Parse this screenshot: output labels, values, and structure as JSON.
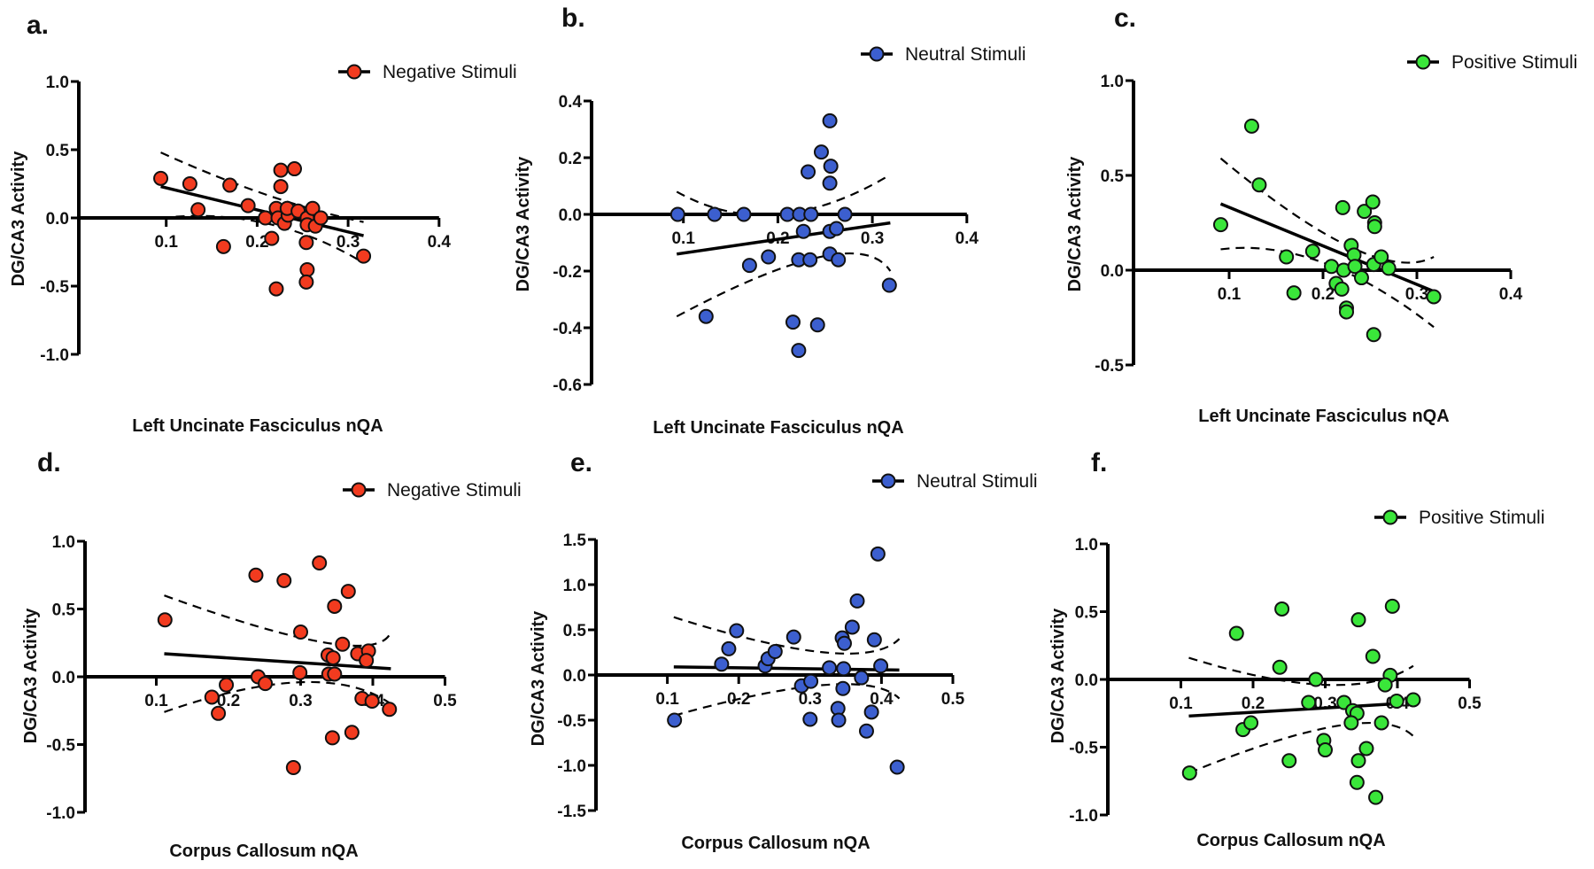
{
  "chart_data": [
    {
      "type": "scatter",
      "panel_label": "a.",
      "legend": "Negative Stimuli",
      "color": "#f23b1f",
      "xlabel": "Left Uncinate Fasciculus nQA",
      "ylabel": "DG/CA3 Activity",
      "xlim": [
        0,
        0.4
      ],
      "ylim": [
        -1.0,
        1.0
      ],
      "xticks": [
        "0.1",
        "0.2",
        "0.3",
        "0.4"
      ],
      "yticks": [
        "1.0",
        "0.5",
        "0.0",
        "-0.5",
        "-1.0"
      ],
      "points": [
        [
          0.094,
          0.29
        ],
        [
          0.126,
          0.25
        ],
        [
          0.135,
          0.06
        ],
        [
          0.17,
          0.24
        ],
        [
          0.19,
          0.09
        ],
        [
          0.163,
          -0.21
        ],
        [
          0.209,
          0.0
        ],
        [
          0.216,
          -0.15
        ],
        [
          0.221,
          -0.52
        ],
        [
          0.226,
          0.35
        ],
        [
          0.226,
          0.23
        ],
        [
          0.221,
          0.07
        ],
        [
          0.223,
          0.0
        ],
        [
          0.23,
          -0.04
        ],
        [
          0.234,
          0.02
        ],
        [
          0.233,
          0.07
        ],
        [
          0.241,
          0.36
        ],
        [
          0.245,
          0.05
        ],
        [
          0.255,
          0.0
        ],
        [
          0.255,
          -0.05
        ],
        [
          0.254,
          -0.18
        ],
        [
          0.255,
          -0.38
        ],
        [
          0.254,
          -0.47
        ],
        [
          0.261,
          0.07
        ],
        [
          0.264,
          -0.06
        ],
        [
          0.27,
          0.0
        ],
        [
          0.317,
          -0.28
        ]
      ],
      "fit": [
        [
          0.094,
          0.23
        ],
        [
          0.317,
          -0.13
        ]
      ],
      "ci_upper": [
        [
          0.094,
          0.48
        ],
        [
          0.21,
          0.17
        ],
        [
          0.317,
          -0.03
        ]
      ],
      "ci_lower": [
        [
          0.094,
          0.0
        ],
        [
          0.21,
          -0.04
        ],
        [
          0.317,
          -0.33
        ]
      ]
    },
    {
      "type": "scatter",
      "panel_label": "b.",
      "legend": "Neutral Stimuli",
      "color": "#3c5fcf",
      "xlabel": "Left Uncinate Fasciculus nQA",
      "ylabel": "DG/CA3 Activity",
      "xlim": [
        0,
        0.4
      ],
      "ylim": [
        -0.6,
        0.4
      ],
      "xticks": [
        "0.1",
        "0.2",
        "0.3",
        "0.4"
      ],
      "yticks": [
        "0.4",
        "0.2",
        "0.0",
        "-0.2",
        "-0.4",
        "-0.6"
      ],
      "points": [
        [
          0.094,
          0.0
        ],
        [
          0.133,
          0.0
        ],
        [
          0.164,
          0.0
        ],
        [
          0.21,
          0.0
        ],
        [
          0.223,
          0.0
        ],
        [
          0.235,
          0.0
        ],
        [
          0.271,
          0.0
        ],
        [
          0.255,
          0.33
        ],
        [
          0.246,
          0.22
        ],
        [
          0.256,
          0.17
        ],
        [
          0.232,
          0.15
        ],
        [
          0.255,
          0.11
        ],
        [
          0.227,
          -0.06
        ],
        [
          0.255,
          -0.06
        ],
        [
          0.262,
          -0.05
        ],
        [
          0.17,
          -0.18
        ],
        [
          0.19,
          -0.15
        ],
        [
          0.222,
          -0.16
        ],
        [
          0.234,
          -0.16
        ],
        [
          0.255,
          -0.14
        ],
        [
          0.264,
          -0.16
        ],
        [
          0.318,
          -0.25
        ],
        [
          0.124,
          -0.36
        ],
        [
          0.216,
          -0.38
        ],
        [
          0.242,
          -0.39
        ],
        [
          0.222,
          -0.48
        ]
      ],
      "fit": [
        [
          0.093,
          -0.14
        ],
        [
          0.319,
          -0.03
        ]
      ],
      "ci_upper": [
        [
          0.093,
          0.08
        ],
        [
          0.2,
          0.0
        ],
        [
          0.319,
          0.14
        ]
      ],
      "ci_lower": [
        [
          0.093,
          -0.36
        ],
        [
          0.245,
          -0.15
        ],
        [
          0.319,
          -0.2
        ]
      ]
    },
    {
      "type": "scatter",
      "panel_label": "c.",
      "legend": "Positive Stimuli",
      "color": "#3ae63a",
      "xlabel": "Left Uncinate Fasciculus nQA",
      "ylabel": "DG/CA3 Activity",
      "xlim": [
        0,
        0.4
      ],
      "ylim": [
        -0.5,
        1.0
      ],
      "xticks": [
        "0.1",
        "0.2",
        "0.3",
        "0.4"
      ],
      "yticks": [
        "1.0",
        "0.5",
        "0.0",
        "-0.5"
      ],
      "points": [
        [
          0.124,
          0.76
        ],
        [
          0.132,
          0.45
        ],
        [
          0.091,
          0.24
        ],
        [
          0.161,
          0.07
        ],
        [
          0.189,
          0.1
        ],
        [
          0.169,
          -0.12
        ],
        [
          0.209,
          0.02
        ],
        [
          0.221,
          0.33
        ],
        [
          0.23,
          0.13
        ],
        [
          0.233,
          0.08
        ],
        [
          0.222,
          0.0
        ],
        [
          0.234,
          0.02
        ],
        [
          0.241,
          -0.04
        ],
        [
          0.214,
          -0.07
        ],
        [
          0.22,
          -0.1
        ],
        [
          0.225,
          -0.2
        ],
        [
          0.225,
          -0.22
        ],
        [
          0.244,
          0.31
        ],
        [
          0.253,
          0.36
        ],
        [
          0.255,
          0.25
        ],
        [
          0.255,
          0.23
        ],
        [
          0.254,
          0.03
        ],
        [
          0.262,
          0.07
        ],
        [
          0.27,
          0.01
        ],
        [
          0.254,
          -0.34
        ],
        [
          0.318,
          -0.14
        ]
      ],
      "fit": [
        [
          0.091,
          0.35
        ],
        [
          0.317,
          -0.11
        ]
      ],
      "ci_upper": [
        [
          0.091,
          0.59
        ],
        [
          0.23,
          0.12
        ],
        [
          0.318,
          0.07
        ]
      ],
      "ci_lower": [
        [
          0.091,
          0.11
        ],
        [
          0.2,
          0.04
        ],
        [
          0.318,
          -0.3
        ]
      ]
    },
    {
      "type": "scatter",
      "panel_label": "d.",
      "legend": "Negative Stimuli",
      "color": "#f23b1f",
      "xlabel": "Corpus Callosum nQA",
      "ylabel": "DG/CA3 Activity",
      "xlim": [
        0,
        0.5
      ],
      "ylim": [
        -1.0,
        1.0
      ],
      "xticks": [
        "0.1",
        "0.2",
        "0.3",
        "0.4",
        "0.5"
      ],
      "yticks": [
        "1.0",
        "0.5",
        "0.0",
        "-0.5",
        "-1.0"
      ],
      "points": [
        [
          0.112,
          0.42
        ],
        [
          0.238,
          0.75
        ],
        [
          0.277,
          0.71
        ],
        [
          0.326,
          0.84
        ],
        [
          0.366,
          0.63
        ],
        [
          0.347,
          0.52
        ],
        [
          0.3,
          0.33
        ],
        [
          0.358,
          0.24
        ],
        [
          0.338,
          0.16
        ],
        [
          0.345,
          0.14
        ],
        [
          0.379,
          0.17
        ],
        [
          0.394,
          0.19
        ],
        [
          0.391,
          0.12
        ],
        [
          0.299,
          0.03
        ],
        [
          0.241,
          0.0
        ],
        [
          0.339,
          0.02
        ],
        [
          0.347,
          0.02
        ],
        [
          0.197,
          -0.06
        ],
        [
          0.251,
          -0.05
        ],
        [
          0.177,
          -0.15
        ],
        [
          0.186,
          -0.27
        ],
        [
          0.385,
          -0.16
        ],
        [
          0.399,
          -0.18
        ],
        [
          0.423,
          -0.24
        ],
        [
          0.344,
          -0.45
        ],
        [
          0.371,
          -0.41
        ],
        [
          0.29,
          -0.67
        ]
      ],
      "fit": [
        [
          0.111,
          0.17
        ],
        [
          0.425,
          0.06
        ]
      ],
      "ci_upper": [
        [
          0.111,
          0.6
        ],
        [
          0.336,
          0.25
        ],
        [
          0.425,
          0.33
        ]
      ],
      "ci_lower": [
        [
          0.111,
          -0.26
        ],
        [
          0.3,
          -0.04
        ],
        [
          0.425,
          -0.2
        ]
      ]
    },
    {
      "type": "scatter",
      "panel_label": "e.",
      "legend": "Neutral Stimuli",
      "color": "#3c5fcf",
      "xlabel": "Corpus Callosum nQA",
      "ylabel": "DG/CA3 Activity",
      "xlim": [
        0,
        0.5
      ],
      "ylim": [
        -1.5,
        1.5
      ],
      "xticks": [
        "0.1",
        "0.2",
        "0.3",
        "0.4",
        "0.5"
      ],
      "yticks": [
        "1.5",
        "1.0",
        "0.5",
        "0.0",
        "-0.5",
        "-1.0",
        "-1.5"
      ],
      "points": [
        [
          0.11,
          -0.5
        ],
        [
          0.176,
          0.12
        ],
        [
          0.186,
          0.29
        ],
        [
          0.197,
          0.49
        ],
        [
          0.237,
          0.1
        ],
        [
          0.241,
          0.18
        ],
        [
          0.251,
          0.26
        ],
        [
          0.277,
          0.42
        ],
        [
          0.288,
          -0.12
        ],
        [
          0.301,
          -0.07
        ],
        [
          0.3,
          -0.49
        ],
        [
          0.327,
          0.08
        ],
        [
          0.345,
          0.41
        ],
        [
          0.348,
          0.35
        ],
        [
          0.359,
          0.53
        ],
        [
          0.366,
          0.82
        ],
        [
          0.347,
          0.07
        ],
        [
          0.372,
          -0.03
        ],
        [
          0.346,
          -0.15
        ],
        [
          0.339,
          -0.37
        ],
        [
          0.34,
          -0.5
        ],
        [
          0.39,
          0.39
        ],
        [
          0.395,
          1.34
        ],
        [
          0.399,
          0.1
        ],
        [
          0.386,
          -0.41
        ],
        [
          0.379,
          -0.62
        ],
        [
          0.422,
          -1.02
        ]
      ],
      "fit": [
        [
          0.109,
          0.09
        ],
        [
          0.425,
          0.055
        ]
      ],
      "ci_upper": [
        [
          0.109,
          0.64
        ],
        [
          0.32,
          0.25
        ],
        [
          0.425,
          0.4
        ]
      ],
      "ci_lower": [
        [
          0.109,
          -0.45
        ],
        [
          0.32,
          -0.11
        ],
        [
          0.425,
          -0.26
        ]
      ]
    },
    {
      "type": "scatter",
      "panel_label": "f.",
      "legend": "Positive Stimuli",
      "color": "#3ae63a",
      "xlabel": "Corpus Callosum nQA",
      "ylabel": "DG/CA3 Activity",
      "xlim": [
        0,
        0.5
      ],
      "ylim": [
        -1.0,
        1.0
      ],
      "xticks": [
        "0.1",
        "0.2",
        "0.3",
        "0.4",
        "0.5"
      ],
      "yticks": [
        "1.0",
        "0.5",
        "0.0",
        "-0.5",
        "-1.0"
      ],
      "points": [
        [
          0.112,
          -0.69
        ],
        [
          0.177,
          0.34
        ],
        [
          0.24,
          0.52
        ],
        [
          0.237,
          0.09
        ],
        [
          0.186,
          -0.37
        ],
        [
          0.197,
          -0.32
        ],
        [
          0.25,
          -0.6
        ],
        [
          0.287,
          0.0
        ],
        [
          0.277,
          -0.17
        ],
        [
          0.298,
          -0.45
        ],
        [
          0.3,
          -0.52
        ],
        [
          0.326,
          -0.17
        ],
        [
          0.338,
          -0.23
        ],
        [
          0.344,
          -0.25
        ],
        [
          0.336,
          -0.32
        ],
        [
          0.346,
          0.44
        ],
        [
          0.366,
          0.17
        ],
        [
          0.357,
          -0.51
        ],
        [
          0.346,
          -0.6
        ],
        [
          0.344,
          -0.76
        ],
        [
          0.37,
          -0.87
        ],
        [
          0.378,
          -0.32
        ],
        [
          0.393,
          0.54
        ],
        [
          0.39,
          0.03
        ],
        [
          0.383,
          -0.04
        ],
        [
          0.399,
          -0.16
        ],
        [
          0.422,
          -0.15
        ]
      ],
      "fit": [
        [
          0.111,
          -0.27
        ],
        [
          0.397,
          -0.18
        ]
      ],
      "ci_upper": [
        [
          0.111,
          0.16
        ],
        [
          0.3,
          -0.04
        ],
        [
          0.422,
          0.1
        ]
      ],
      "ci_lower": [
        [
          0.111,
          -0.69
        ],
        [
          0.32,
          -0.34
        ],
        [
          0.424,
          -0.43
        ]
      ]
    }
  ]
}
